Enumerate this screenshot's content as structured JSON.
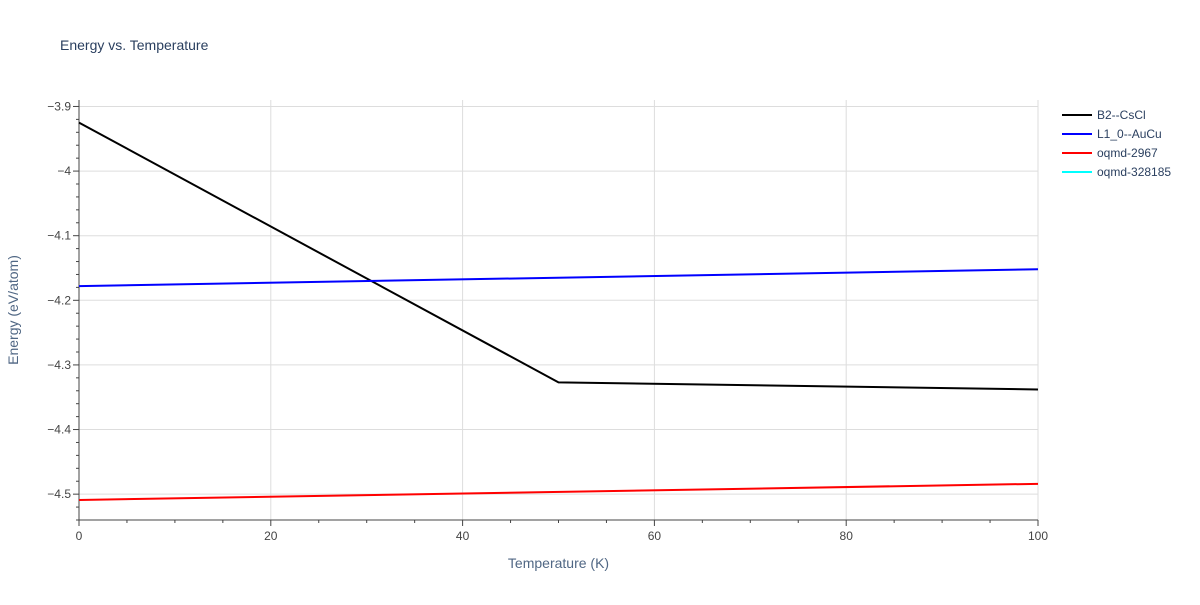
{
  "chart_data": {
    "type": "line",
    "title": "Energy vs. Temperature",
    "xlabel": "Temperature (K)",
    "ylabel": "Energy (eV/atom)",
    "xlim": [
      0,
      100
    ],
    "ylim": [
      -4.54,
      -3.89
    ],
    "x_ticks": [
      0,
      20,
      40,
      60,
      80,
      100
    ],
    "x_tick_labels": [
      "0",
      "20",
      "40",
      "60",
      "80",
      "100"
    ],
    "y_ticks": [
      -3.9,
      -4.0,
      -4.1,
      -4.2,
      -4.3,
      -4.4,
      -4.5
    ],
    "y_tick_labels": [
      "−3.9",
      "−4",
      "−4.1",
      "−4.2",
      "−4.3",
      "−4.4",
      "−4.5"
    ],
    "grid": true,
    "legend_position": "top-right",
    "series": [
      {
        "name": "B2--CsCl",
        "color": "#000000",
        "x": [
          0,
          50,
          100
        ],
        "y": [
          -3.925,
          -4.327,
          -4.338
        ]
      },
      {
        "name": "L1_0--AuCu",
        "color": "#0000ff",
        "x": [
          0,
          100
        ],
        "y": [
          -4.178,
          -4.152
        ]
      },
      {
        "name": "oqmd-2967",
        "color": "#ff0000",
        "x": [
          0,
          100
        ],
        "y": [
          -4.509,
          -4.484
        ]
      },
      {
        "name": "oqmd-328185",
        "color": "#00ffff",
        "x": [],
        "y": []
      }
    ]
  }
}
